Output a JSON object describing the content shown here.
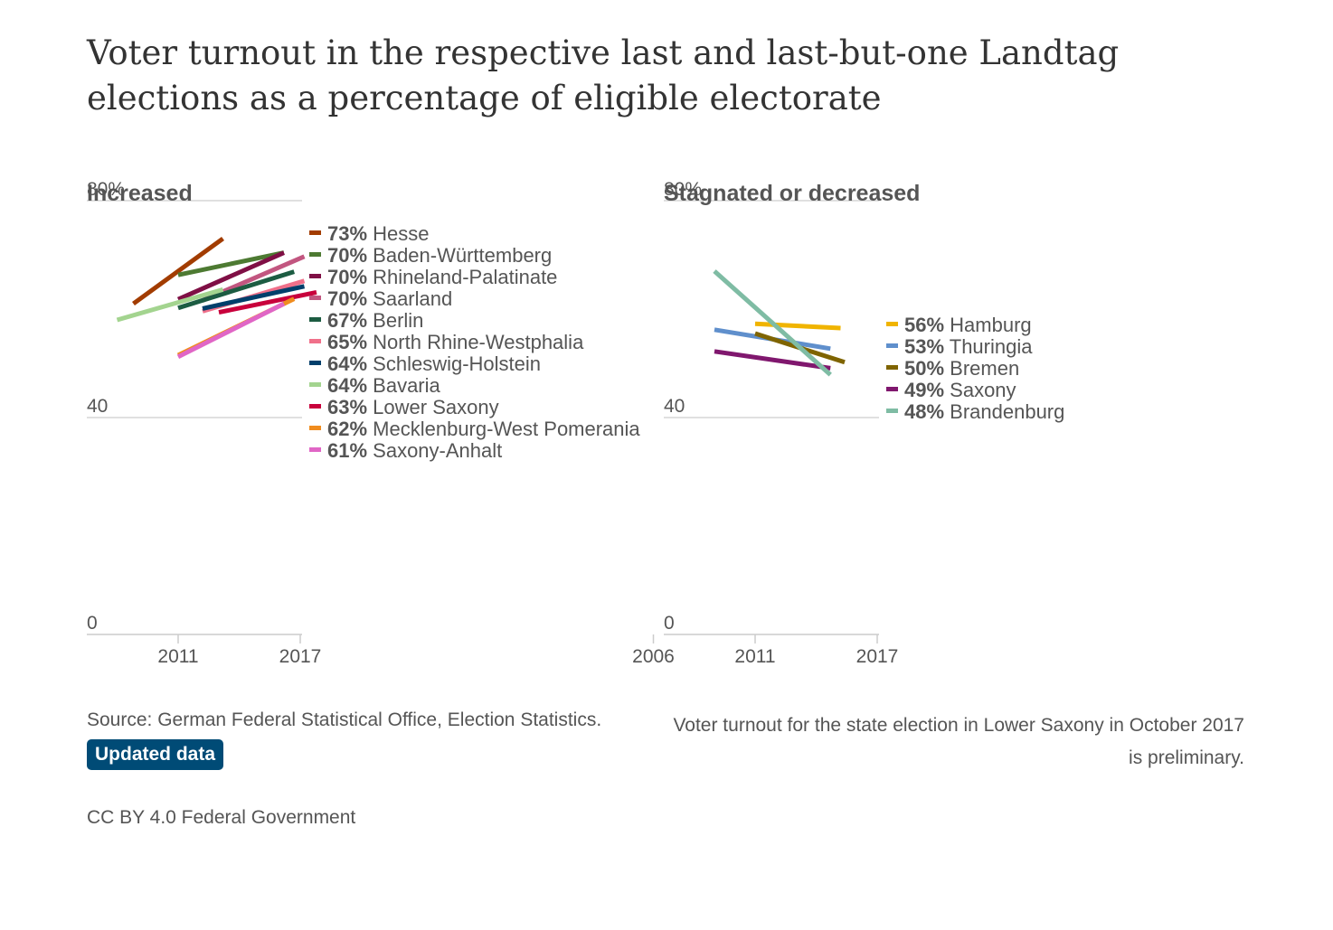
{
  "page": {
    "title": "Voter turnout in the respective last and last-but-one Landtag elections as a percentage of eligible electorate",
    "source": "Source: German Federal Statistical Office, Election Statistics.",
    "updated_label": "Updated data",
    "note": "Voter turnout for the state election in Lower Saxony in October 2017 is preliminary.",
    "license": "CC BY 4.0 Federal Government"
  },
  "chart_data": [
    {
      "type": "line",
      "title": "Increased",
      "ylim": [
        0,
        80
      ],
      "yticks": [
        {
          "label": "80%",
          "value": 80
        },
        {
          "label": "40",
          "value": 40
        },
        {
          "label": "0",
          "value": 0
        }
      ],
      "xticks": [
        {
          "label": "2011",
          "value": 2011
        },
        {
          "label": "2017",
          "value": 2017
        }
      ],
      "grid": true,
      "legend": "right",
      "series": [
        {
          "name": "Hesse",
          "label": "73%",
          "color": "#a23c00",
          "points": [
            [
              2008.8,
              61
            ],
            [
              2013.2,
              73
            ]
          ]
        },
        {
          "name": "Baden-Württemberg",
          "label": "70%",
          "color": "#4d7a32",
          "points": [
            [
              2011,
              66.3
            ],
            [
              2016.2,
              70.4
            ]
          ]
        },
        {
          "name": "Rhineland-Palatinate",
          "label": "70%",
          "color": "#7f0f45",
          "points": [
            [
              2011,
              61.8
            ],
            [
              2016.2,
              70.4
            ]
          ]
        },
        {
          "name": "Saarland",
          "label": "70%",
          "color": "#c25680",
          "points": [
            [
              2012.2,
              61.6
            ],
            [
              2017.2,
              69.7
            ]
          ]
        },
        {
          "name": "Berlin",
          "label": "67%",
          "color": "#1c5c42",
          "points": [
            [
              2011,
              60.2
            ],
            [
              2016.7,
              66.9
            ]
          ]
        },
        {
          "name": "North Rhine-Westphalia",
          "label": "65%",
          "color": "#f0708a",
          "points": [
            [
              2012.2,
              59.6
            ],
            [
              2017.2,
              65.2
            ]
          ]
        },
        {
          "name": "Schleswig-Holstein",
          "label": "64%",
          "color": "#003f6b",
          "points": [
            [
              2012.2,
              60.1
            ],
            [
              2017.2,
              64.2
            ]
          ]
        },
        {
          "name": "Bavaria",
          "label": "64%",
          "color": "#a3d48f",
          "points": [
            [
              2008,
              58
            ],
            [
              2013.2,
              63.6
            ]
          ]
        },
        {
          "name": "Lower Saxony",
          "label": "63%",
          "color": "#c8003c",
          "points": [
            [
              2013,
              59.4
            ],
            [
              2017.8,
              63.1
            ]
          ]
        },
        {
          "name": "Mecklenburg-West Pomerania",
          "label": "62%",
          "color": "#f08c1e",
          "points": [
            [
              2011,
              51.5
            ],
            [
              2016.7,
              61.9
            ]
          ]
        },
        {
          "name": "Saxony-Anhalt",
          "label": "61%",
          "color": "#e066c6",
          "points": [
            [
              2011,
              51.2
            ],
            [
              2016.2,
              61
            ]
          ]
        }
      ]
    },
    {
      "type": "line",
      "title": "Stagnated or decreased",
      "ylim": [
        0,
        80
      ],
      "yticks": [
        {
          "label": "80%",
          "value": 80
        },
        {
          "label": "40",
          "value": 40
        },
        {
          "label": "0",
          "value": 0
        }
      ],
      "xticks": [
        {
          "label": "2006",
          "value": 2006
        },
        {
          "label": "2011",
          "value": 2011
        },
        {
          "label": "2017",
          "value": 2017
        }
      ],
      "grid": true,
      "legend": "right",
      "series": [
        {
          "name": "Hamburg",
          "label": "56%",
          "color": "#f0b400",
          "points": [
            [
              2011,
              57.3
            ],
            [
              2015.2,
              56.5
            ]
          ]
        },
        {
          "name": "Thuringia",
          "label": "53%",
          "color": "#5f8fcc",
          "points": [
            [
              2009,
              56.2
            ],
            [
              2014.7,
              52.7
            ]
          ]
        },
        {
          "name": "Bremen",
          "label": "50%",
          "color": "#7f6400",
          "points": [
            [
              2011,
              55.5
            ],
            [
              2015.4,
              50.2
            ]
          ]
        },
        {
          "name": "Saxony",
          "label": "49%",
          "color": "#80176e",
          "points": [
            [
              2009,
              52.2
            ],
            [
              2014.7,
              49.1
            ]
          ]
        },
        {
          "name": "Brandenburg",
          "label": "48%",
          "color": "#7fbca4",
          "points": [
            [
              2009,
              67
            ],
            [
              2014.7,
              47.9
            ]
          ]
        }
      ]
    }
  ]
}
